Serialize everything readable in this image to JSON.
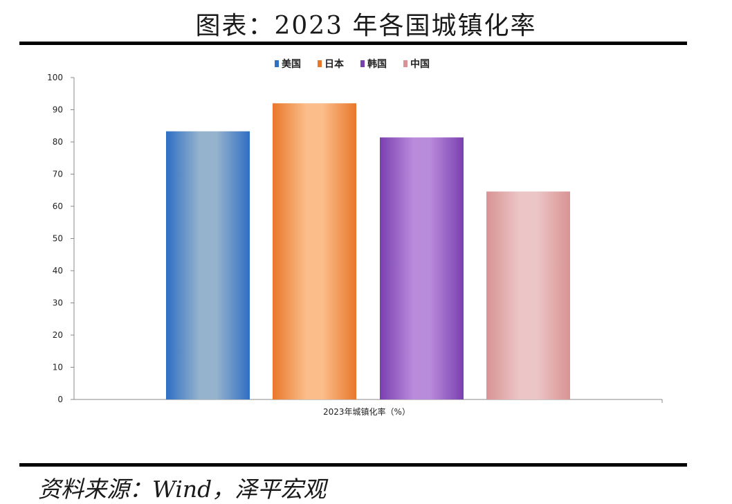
{
  "page": {
    "title": "图表：2023 年各国城镇化率",
    "source": "资料来源：Wind，泽平宏观"
  },
  "chart_data": {
    "type": "bar",
    "title": "",
    "xlabel": "2023年城镇化率（%）",
    "ylabel": "",
    "ylim": [
      0,
      100
    ],
    "yticks": [
      0,
      10,
      20,
      30,
      40,
      50,
      60,
      70,
      80,
      90,
      100
    ],
    "legend_position": "top-center",
    "grid": false,
    "series": [
      {
        "name": "美国",
        "value": 83.3,
        "color": "#2f6fc4",
        "highlight": "#95b3cd"
      },
      {
        "name": "日本",
        "value": 92.0,
        "color": "#e8772a",
        "highlight": "#fbbd8a"
      },
      {
        "name": "韩国",
        "value": 81.4,
        "color": "#7a3fb0",
        "highlight": "#b98bdb"
      },
      {
        "name": "中国",
        "value": 64.6,
        "color": "#d99394",
        "highlight": "#ecc6c6"
      }
    ]
  }
}
